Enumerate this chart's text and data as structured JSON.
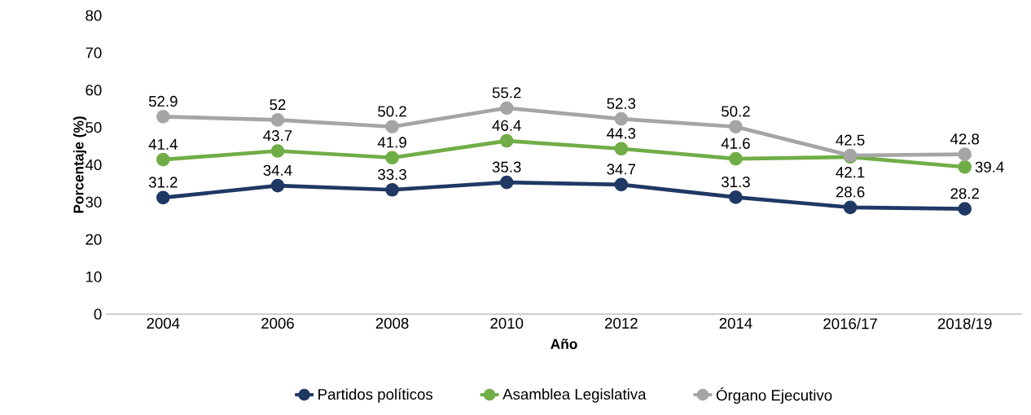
{
  "chart_data": {
    "type": "line",
    "xlabel": "Año",
    "ylabel": "Porcentaje (%)",
    "categories": [
      "2004",
      "2006",
      "2008",
      "2010",
      "2012",
      "2014",
      "2016/17",
      "2018/19"
    ],
    "series": [
      {
        "name": "Partidos políticos",
        "color": "#1f3864",
        "values": [
          31.2,
          34.4,
          33.3,
          35.3,
          34.7,
          31.3,
          28.6,
          28.2
        ]
      },
      {
        "name": "Asamblea Legislativa",
        "color": "#70ad47",
        "values": [
          41.4,
          43.7,
          41.9,
          46.4,
          44.3,
          41.6,
          42.1,
          39.4
        ]
      },
      {
        "name": "Órgano Ejecutivo",
        "color": "#a5a5a5",
        "values": [
          52.9,
          52,
          50.2,
          55.2,
          52.3,
          50.2,
          42.5,
          42.8
        ]
      }
    ],
    "ylim": [
      0,
      80
    ],
    "yticks": [
      0,
      10,
      20,
      30,
      40,
      50,
      60,
      70,
      80
    ],
    "data_labels": true,
    "legend": "bottom",
    "marker": "circle",
    "line_style": "solid",
    "grid": false
  }
}
